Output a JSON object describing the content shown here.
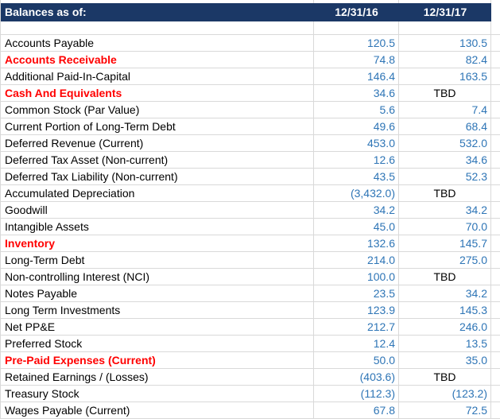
{
  "table": {
    "colors": {
      "header_bg": "#1B3866",
      "header_text": "#FFFFFF",
      "value_blue": "#2E75B6",
      "label_red": "#FF0000",
      "label_black": "#000000",
      "gridline": "#D9D9D9",
      "sheet_bg": "#FFFFFF"
    },
    "header": {
      "title": "Balances as of:",
      "col1": "12/31/16",
      "col2": "12/31/17"
    },
    "rows": [
      {
        "label": "Accounts Payable",
        "red": false,
        "v1": "120.5",
        "v2": "130.5"
      },
      {
        "label": "Accounts Receivable",
        "red": true,
        "v1": "74.8",
        "v2": "82.4"
      },
      {
        "label": "Additional Paid-In-Capital",
        "red": false,
        "v1": "146.4",
        "v2": "163.5"
      },
      {
        "label": "Cash And Equivalents",
        "red": true,
        "v1": "34.6",
        "v2": "TBD"
      },
      {
        "label": "Common Stock (Par Value)",
        "red": false,
        "v1": "5.6",
        "v2": "7.4"
      },
      {
        "label": "Current Portion of Long-Term Debt",
        "red": false,
        "v1": "49.6",
        "v2": "68.4"
      },
      {
        "label": "Deferred Revenue (Current)",
        "red": false,
        "v1": "453.0",
        "v2": "532.0"
      },
      {
        "label": "Deferred Tax Asset (Non-current)",
        "red": false,
        "v1": "12.6",
        "v2": "34.6"
      },
      {
        "label": "Deferred Tax Liability (Non-current)",
        "red": false,
        "v1": "43.5",
        "v2": "52.3"
      },
      {
        "label": "Accumulated Depreciation",
        "red": false,
        "v1": "(3,432.0)",
        "v2": "TBD"
      },
      {
        "label": "Goodwill",
        "red": false,
        "v1": "34.2",
        "v2": "34.2"
      },
      {
        "label": "Intangible Assets",
        "red": false,
        "v1": "45.0",
        "v2": "70.0"
      },
      {
        "label": "Inventory",
        "red": true,
        "v1": "132.6",
        "v2": "145.7"
      },
      {
        "label": "Long-Term Debt",
        "red": false,
        "v1": "214.0",
        "v2": "275.0"
      },
      {
        "label": "Non-controlling Interest (NCI)",
        "red": false,
        "v1": "100.0",
        "v2": "TBD"
      },
      {
        "label": "Notes Payable",
        "red": false,
        "v1": "23.5",
        "v2": "34.2"
      },
      {
        "label": "Long Term Investments",
        "red": false,
        "v1": "123.9",
        "v2": "145.3"
      },
      {
        "label": "Net PP&E",
        "red": false,
        "v1": "212.7",
        "v2": "246.0"
      },
      {
        "label": "Preferred Stock",
        "red": false,
        "v1": "12.4",
        "v2": "13.5"
      },
      {
        "label": "Pre-Paid Expenses (Current)",
        "red": true,
        "v1": "50.0",
        "v2": "35.0"
      },
      {
        "label": "Retained Earnings / (Losses)",
        "red": false,
        "v1": "(403.6)",
        "v2": "TBD"
      },
      {
        "label": "Treasury Stock",
        "red": false,
        "v1": "(112.3)",
        "v2": "(123.2)"
      },
      {
        "label": "Wages Payable (Current)",
        "red": false,
        "v1": "67.8",
        "v2": "72.5"
      }
    ]
  }
}
